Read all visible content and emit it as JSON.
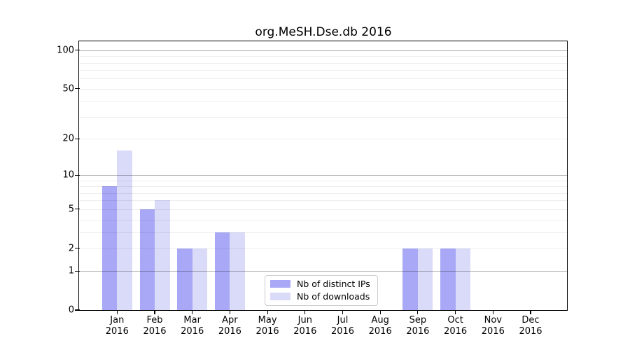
{
  "chart_data": {
    "type": "bar",
    "title": "org.MeSH.Dse.db 2016",
    "categories": [
      "Jan",
      "Feb",
      "Mar",
      "Apr",
      "May",
      "Jun",
      "Jul",
      "Aug",
      "Sep",
      "Oct",
      "Nov",
      "Dec"
    ],
    "category_year": "2016",
    "series": [
      {
        "name": "Nb of distinct IPs",
        "color": "#a8a8f6",
        "values": [
          8,
          5,
          2,
          3,
          0,
          0,
          0,
          0,
          2,
          2,
          0,
          0
        ]
      },
      {
        "name": "Nb of downloads",
        "color": "#dadaf9",
        "values": [
          16,
          6,
          2,
          3,
          0,
          0,
          0,
          0,
          2,
          2,
          0,
          0
        ]
      }
    ],
    "y_scale": "log1p",
    "ylim": [
      0,
      116
    ],
    "y_ticks": [
      0,
      1,
      2,
      5,
      10,
      20,
      50,
      100
    ],
    "y_major_gridlines": [
      1,
      10,
      100
    ],
    "y_minor_gridlines": [
      2,
      3,
      4,
      5,
      6,
      7,
      8,
      9,
      20,
      30,
      40,
      50,
      60,
      70,
      80,
      90
    ],
    "grid": true,
    "legend_position": "inside-lower-center",
    "xlabel": "",
    "ylabel": ""
  },
  "colors": {
    "background": "#ffffff",
    "spine": "#000000",
    "major_grid": "#b0b0b0",
    "minor_grid": "#ededed",
    "legend_border": "#cccccc",
    "series_distinct_ips": "#a8a8f6",
    "series_downloads": "#dadaf9"
  }
}
